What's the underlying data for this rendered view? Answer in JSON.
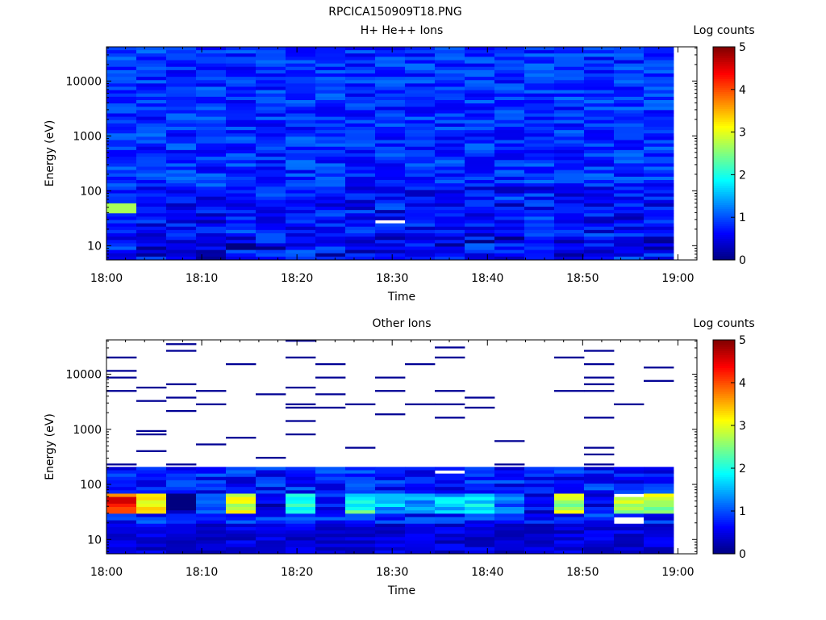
{
  "figure_title": "RPCICA150909T18.PNG",
  "chart_data": [
    {
      "type": "heatmap",
      "title": "H+ He++ Ions",
      "xlabel": "Time",
      "ylabel": "Energy (eV)",
      "colorbar_label": "Log counts",
      "y_scale": "log",
      "x_tick_labels": [
        "18:00",
        "18:10",
        "18:20",
        "18:30",
        "18:40",
        "18:50",
        "19:00"
      ],
      "y_tick_labels": [
        "10",
        "100",
        "1000",
        "10000"
      ],
      "colorbar_ticks": [
        "0",
        "1",
        "2",
        "3",
        "4",
        "5"
      ],
      "xlim": [
        "18:00",
        "19:02"
      ],
      "ylim": [
        5.5,
        42000
      ],
      "clim": [
        0,
        5
      ],
      "time_bins": 19,
      "colormap": "jet",
      "description_of_values": "Broad background ~0.7-1.3 log counts across all energies; lower energies (10-100 eV) darker ~0.3-0.9; at 18:00 a bright cell ~2.7 near 45 eV; one white (no data) cell near 27 eV at ~18:31.",
      "highlights": [
        {
          "time": "18:00",
          "energy_eV": 45,
          "log_counts": 2.7
        },
        {
          "time": "18:31",
          "energy_eV": 27,
          "log_counts": null
        }
      ]
    },
    {
      "type": "heatmap",
      "title": "Other Ions",
      "xlabel": "Time",
      "ylabel": "Energy (eV)",
      "colorbar_label": "Log counts",
      "y_scale": "log",
      "x_tick_labels": [
        "18:00",
        "18:10",
        "18:20",
        "18:30",
        "18:40",
        "18:50",
        "19:00"
      ],
      "y_tick_labels": [
        "10",
        "100",
        "1000",
        "10000"
      ],
      "colorbar_ticks": [
        "0",
        "1",
        "2",
        "3",
        "4",
        "5"
      ],
      "xlim": [
        "18:00",
        "19:02"
      ],
      "ylim": [
        5.5,
        42000
      ],
      "clim": [
        0,
        5
      ],
      "time_bins": 19,
      "colormap": "jet",
      "description_of_values": "Dense coverage below ~200 eV (0.3-1.2 log counts), with an enhanced band at 30-60 eV (2-4.5 log counts, peak ~4.5 at 18:00 near 50 eV). Above ~200 eV only sparse single-bin detections (~0.1 log counts).",
      "highlights": [
        {
          "time": "18:00",
          "energy_eV": 50,
          "log_counts": 4.5
        },
        {
          "time": "18:03",
          "energy_eV": 45,
          "log_counts": 3.6
        },
        {
          "time": "18:13",
          "energy_eV": 45,
          "log_counts": 3.3
        },
        {
          "time": "18:47",
          "energy_eV": 35,
          "log_counts": 3.2
        },
        {
          "time": "18:53",
          "energy_eV": 35,
          "log_counts": 3.3
        },
        {
          "time": "19:00",
          "energy_eV": 35,
          "log_counts": 3.2
        }
      ]
    }
  ]
}
